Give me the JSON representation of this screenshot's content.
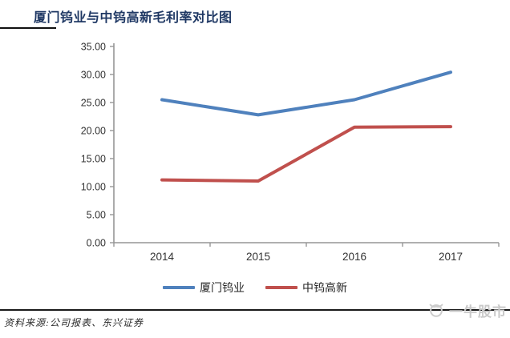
{
  "page": {
    "title": "厦门钨业与中钨高新毛利率对比图",
    "source_note": "资料来源:公司报表、东兴证券",
    "watermark_text": "一牛股市"
  },
  "chart_data": {
    "type": "line",
    "title": "厦门钨业与中钨高新毛利率对比图",
    "categories": [
      "2014",
      "2015",
      "2016",
      "2017"
    ],
    "series": [
      {
        "name": "厦门钨业",
        "color": "#4F81BD",
        "values": [
          25.5,
          22.8,
          25.5,
          30.4
        ]
      },
      {
        "name": "中钨高新",
        "color": "#C0504D",
        "values": [
          11.2,
          11.0,
          20.6,
          20.7
        ]
      }
    ],
    "ylabel": "",
    "xlabel": "",
    "ylim": [
      0,
      35
    ],
    "ytick_step": 5,
    "ytick_decimals": 2,
    "grid": false,
    "legend_position": "bottom",
    "axis_color": "#969696",
    "tick_label_color": "#333333"
  }
}
